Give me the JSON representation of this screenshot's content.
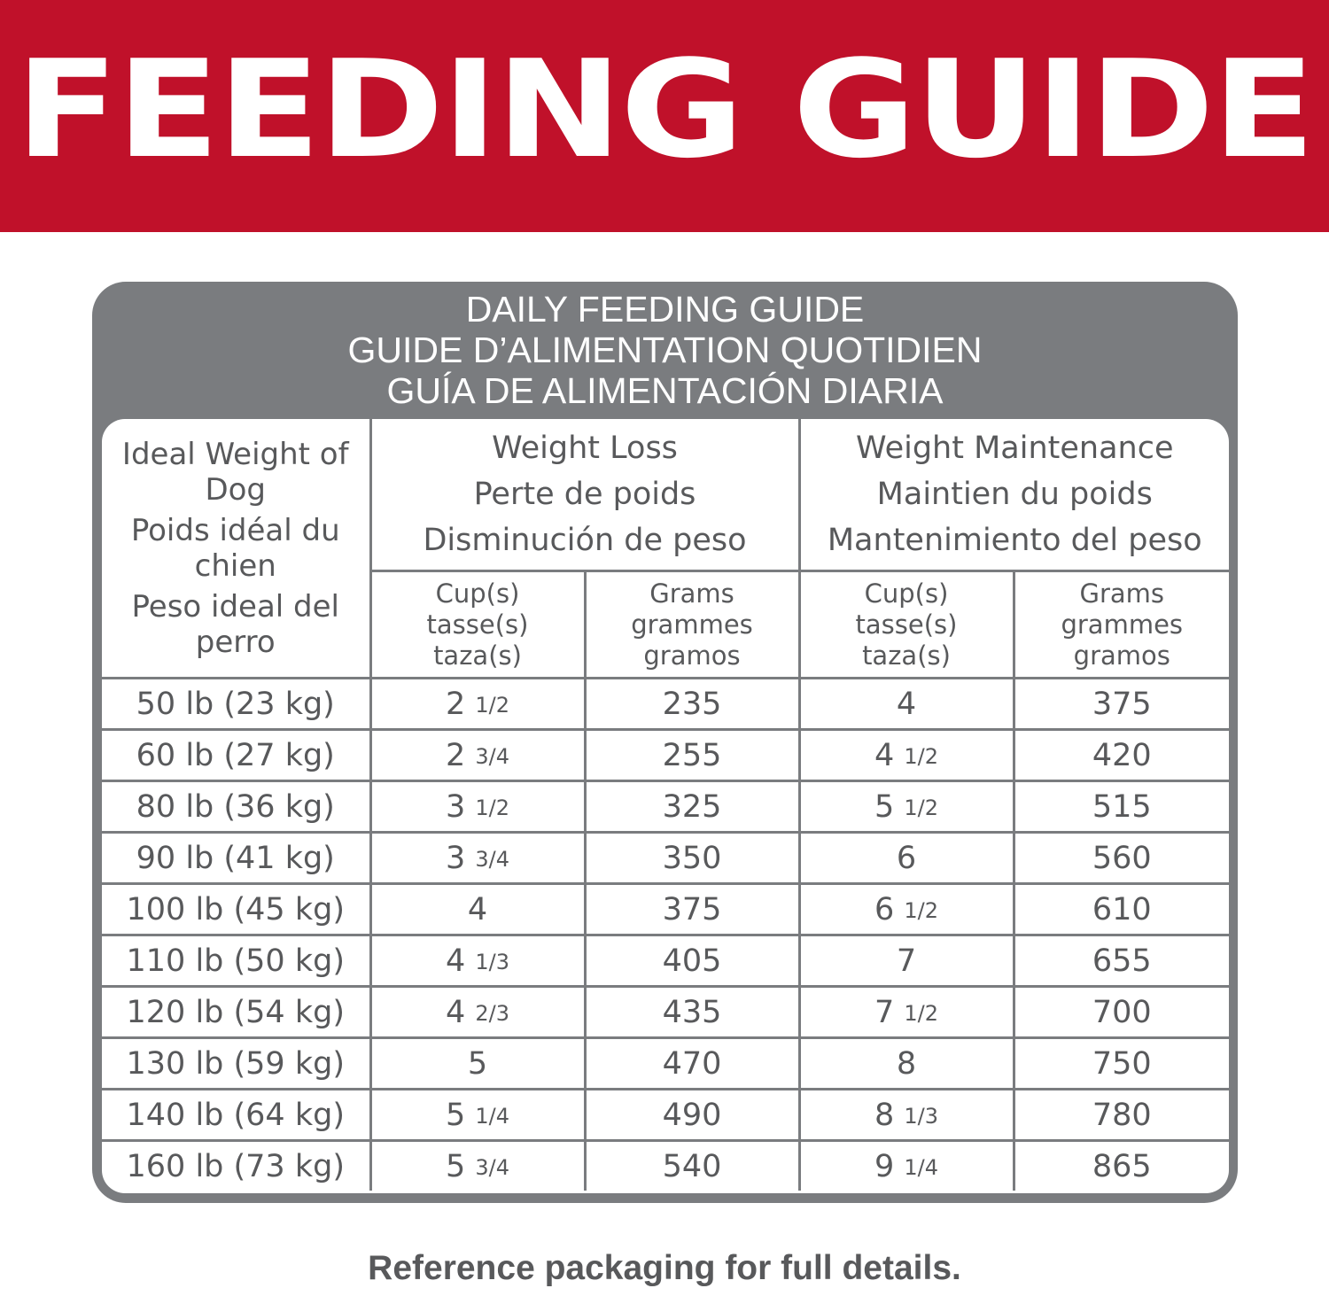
{
  "banner": {
    "title": "FEEDING GUIDE"
  },
  "panel": {
    "title_lines": [
      "DAILY FEEDING GUIDE",
      "GUIDE D’ALIMENTATION QUOTIDIEN",
      "GUÍA DE ALIMENTACIÓN DIARIA"
    ]
  },
  "table": {
    "weight_header": [
      "Ideal Weight of Dog",
      "Poids idéal du chien",
      "Peso ideal del perro"
    ],
    "groups": [
      {
        "lines": [
          "Weight Loss",
          "Perte de poids",
          "Disminución de peso"
        ]
      },
      {
        "lines": [
          "Weight Maintenance",
          "Maintien du poids",
          "Mantenimiento del peso"
        ]
      }
    ],
    "subheaders": {
      "cups": [
        "Cup(s)",
        "tasse(s)",
        "taza(s)"
      ],
      "grams": [
        "Grams",
        "grammes",
        "gramos"
      ]
    },
    "rows": [
      {
        "weight": "50 lb (23 kg)",
        "loss_cups": "2",
        "loss_cups_frac": "1/2",
        "loss_grams": "235",
        "maint_cups": "4",
        "maint_cups_frac": "",
        "maint_grams": "375"
      },
      {
        "weight": "60 lb (27 kg)",
        "loss_cups": "2",
        "loss_cups_frac": "3/4",
        "loss_grams": "255",
        "maint_cups": "4",
        "maint_cups_frac": "1/2",
        "maint_grams": "420"
      },
      {
        "weight": "80 lb (36 kg)",
        "loss_cups": "3",
        "loss_cups_frac": "1/2",
        "loss_grams": "325",
        "maint_cups": "5",
        "maint_cups_frac": "1/2",
        "maint_grams": "515"
      },
      {
        "weight": "90 lb (41 kg)",
        "loss_cups": "3",
        "loss_cups_frac": "3/4",
        "loss_grams": "350",
        "maint_cups": "6",
        "maint_cups_frac": "",
        "maint_grams": "560"
      },
      {
        "weight": "100 lb (45 kg)",
        "loss_cups": "4",
        "loss_cups_frac": "",
        "loss_grams": "375",
        "maint_cups": "6",
        "maint_cups_frac": "1/2",
        "maint_grams": "610"
      },
      {
        "weight": "110 lb (50 kg)",
        "loss_cups": "4",
        "loss_cups_frac": "1/3",
        "loss_grams": "405",
        "maint_cups": "7",
        "maint_cups_frac": "",
        "maint_grams": "655"
      },
      {
        "weight": "120 lb (54 kg)",
        "loss_cups": "4",
        "loss_cups_frac": "2/3",
        "loss_grams": "435",
        "maint_cups": "7",
        "maint_cups_frac": "1/2",
        "maint_grams": "700"
      },
      {
        "weight": "130 lb (59 kg)",
        "loss_cups": "5",
        "loss_cups_frac": "",
        "loss_grams": "470",
        "maint_cups": "8",
        "maint_cups_frac": "",
        "maint_grams": "750"
      },
      {
        "weight": "140 lb (64 kg)",
        "loss_cups": "5",
        "loss_cups_frac": "1/4",
        "loss_grams": "490",
        "maint_cups": "8",
        "maint_cups_frac": "1/3",
        "maint_grams": "780"
      },
      {
        "weight": "160 lb (73 kg)",
        "loss_cups": "5",
        "loss_cups_frac": "3/4",
        "loss_grams": "540",
        "maint_cups": "9",
        "maint_cups_frac": "1/4",
        "maint_grams": "865"
      }
    ]
  },
  "footer": {
    "note": "Reference packaging for full details."
  },
  "colors": {
    "banner_red": "#c0112a",
    "panel_gray": "#7a7c7f",
    "text_gray": "#58595b"
  }
}
